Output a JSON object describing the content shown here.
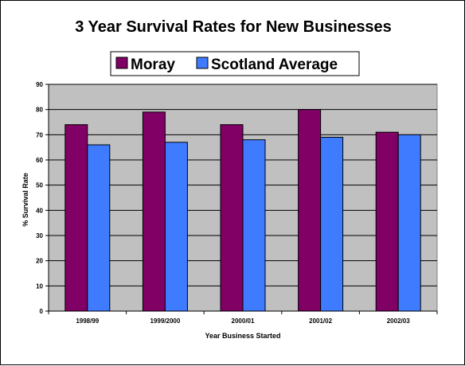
{
  "chart_data": {
    "type": "bar",
    "title": "3 Year Survival Rates for New Businesses",
    "xlabel": "Year Business Started",
    "ylabel": "% Survival Rate",
    "categories": [
      "1998/99",
      "1999/2000",
      "2000/01",
      "2001/02",
      "2002/03"
    ],
    "series": [
      {
        "name": "Moray",
        "values": [
          74,
          79,
          74,
          80,
          71
        ],
        "color": "#800066"
      },
      {
        "name": "Scotland Average",
        "values": [
          66,
          67,
          68,
          69,
          70
        ],
        "color": "#3f7bff"
      }
    ],
    "ylim": [
      0,
      90
    ],
    "yticks": [
      0,
      10,
      20,
      30,
      40,
      50,
      60,
      70,
      80,
      90
    ],
    "grid": true,
    "legend_position": "top",
    "plot_background": "#c0c0c0"
  }
}
